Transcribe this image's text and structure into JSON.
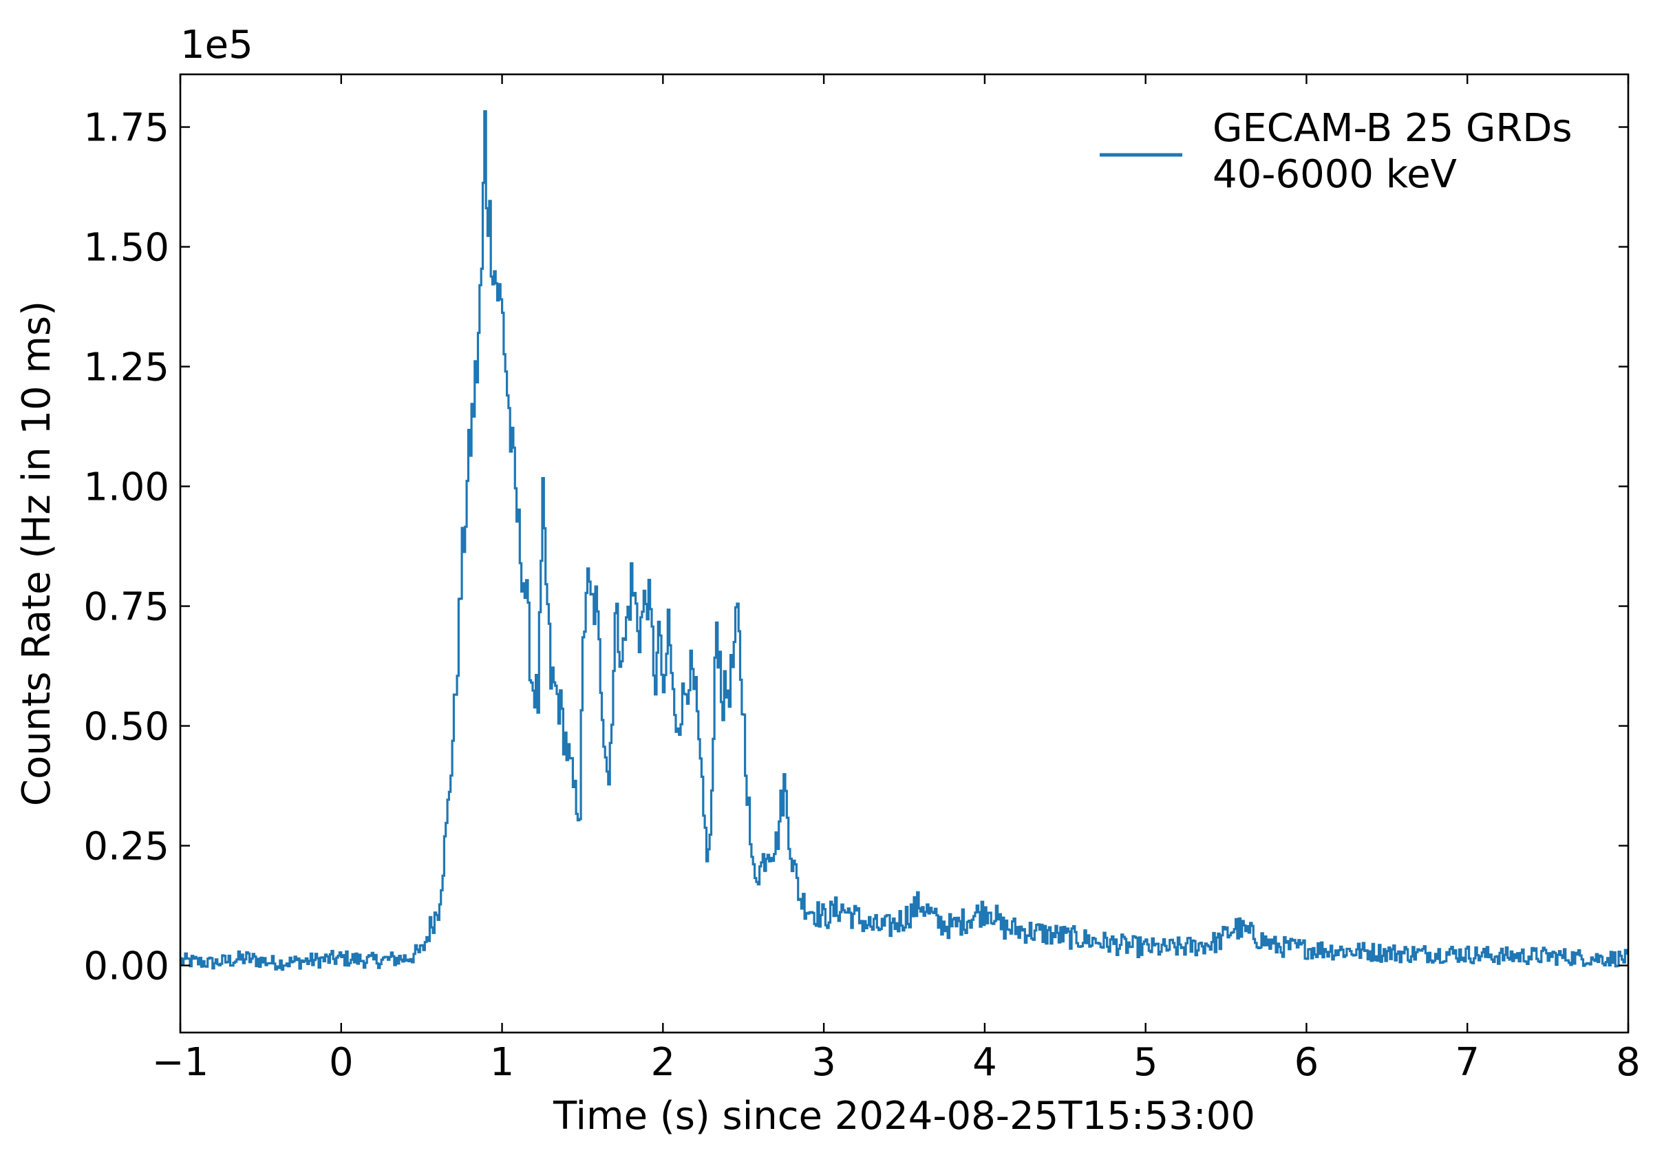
{
  "chart_data": {
    "type": "line",
    "title": "",
    "xlabel": "Time (s) since 2024-08-25T15:53:00",
    "ylabel": "Counts Rate (Hz in 10 ms)",
    "y_offset_text": "1e5",
    "y_scale_factor": 100000,
    "xlim": [
      -1,
      8
    ],
    "ylim": [
      -0.14,
      1.86
    ],
    "x_ticks": [
      -1,
      0,
      1,
      2,
      3,
      4,
      5,
      6,
      7,
      8
    ],
    "x_tick_labels": [
      "−1",
      "0",
      "1",
      "2",
      "3",
      "4",
      "5",
      "6",
      "7",
      "8"
    ],
    "y_ticks": [
      0.0,
      0.25,
      0.5,
      0.75,
      1.0,
      1.25,
      1.5,
      1.75
    ],
    "y_tick_labels": [
      "0.00",
      "0.25",
      "0.50",
      "0.75",
      "1.00",
      "1.25",
      "1.50",
      "1.75"
    ],
    "grid": false,
    "legend_position": "top-right",
    "color": "#1f77b4",
    "series": [
      {
        "name": "GECAM-B 25 GRDs\n40-6000 keV",
        "legend_lines": [
          "GECAM-B 25 GRDs",
          "40-6000 keV"
        ],
        "style": "step",
        "x": [
          -1.0,
          -0.8,
          -0.6,
          -0.4,
          -0.2,
          0.0,
          0.2,
          0.4,
          0.5,
          0.55,
          0.6,
          0.65,
          0.7,
          0.75,
          0.8,
          0.84,
          0.87,
          0.89,
          0.9,
          0.92,
          0.95,
          1.0,
          1.05,
          1.1,
          1.15,
          1.18,
          1.22,
          1.25,
          1.27,
          1.3,
          1.35,
          1.4,
          1.45,
          1.48,
          1.5,
          1.52,
          1.55,
          1.58,
          1.6,
          1.63,
          1.66,
          1.7,
          1.75,
          1.8,
          1.85,
          1.9,
          1.95,
          1.98,
          2.0,
          2.03,
          2.07,
          2.12,
          2.16,
          2.2,
          2.25,
          2.28,
          2.3,
          2.33,
          2.37,
          2.42,
          2.46,
          2.5,
          2.55,
          2.6,
          2.65,
          2.7,
          2.75,
          2.8,
          2.85,
          2.9,
          3.0,
          3.1,
          3.2,
          3.3,
          3.4,
          3.5,
          3.6,
          3.7,
          3.8,
          3.9,
          4.03,
          4.1,
          4.3,
          4.5,
          4.7,
          4.9,
          5.1,
          5.3,
          5.45,
          5.55,
          5.65,
          5.8,
          6.0,
          6.3,
          6.6,
          6.9,
          7.2,
          7.5,
          7.8,
          8.0
        ],
        "y": [
          0.01,
          0.005,
          0.015,
          0.005,
          0.01,
          0.015,
          0.01,
          0.015,
          0.03,
          0.08,
          0.12,
          0.28,
          0.52,
          0.85,
          1.1,
          1.25,
          1.45,
          1.75,
          1.62,
          1.55,
          1.45,
          1.35,
          1.1,
          0.9,
          0.75,
          0.6,
          0.55,
          0.95,
          0.8,
          0.6,
          0.55,
          0.45,
          0.35,
          0.33,
          0.65,
          0.8,
          0.75,
          0.75,
          0.65,
          0.5,
          0.38,
          0.72,
          0.65,
          0.8,
          0.7,
          0.78,
          0.6,
          0.7,
          0.52,
          0.72,
          0.5,
          0.55,
          0.62,
          0.55,
          0.3,
          0.22,
          0.35,
          0.72,
          0.55,
          0.6,
          0.72,
          0.5,
          0.2,
          0.2,
          0.25,
          0.25,
          0.38,
          0.22,
          0.14,
          0.12,
          0.1,
          0.12,
          0.1,
          0.08,
          0.08,
          0.1,
          0.13,
          0.09,
          0.08,
          0.1,
          0.12,
          0.08,
          0.07,
          0.06,
          0.05,
          0.04,
          0.035,
          0.04,
          0.05,
          0.08,
          0.065,
          0.04,
          0.035,
          0.03,
          0.025,
          0.025,
          0.02,
          0.02,
          0.015,
          0.015
        ]
      }
    ]
  }
}
